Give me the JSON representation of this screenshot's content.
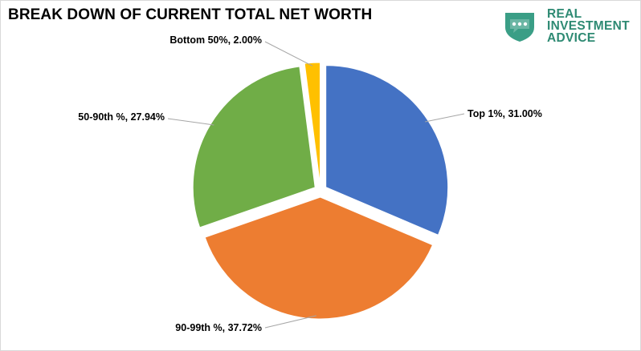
{
  "title": "BREAK DOWN OF CURRENT TOTAL NET WORTH",
  "logo": {
    "lines": [
      "REAL",
      "INVESTMENT",
      "ADVICE"
    ],
    "color": "#2e8a73",
    "icon": "shield-chat-icon"
  },
  "chart_data": {
    "type": "pie",
    "title": "BREAK DOWN OF CURRENT TOTAL NET WORTH",
    "exploded": true,
    "slices": [
      {
        "name": "Top 1%",
        "value": 31.0,
        "label": "Top 1%, 31.00%",
        "color": "#4472c4"
      },
      {
        "name": "90-99th %",
        "value": 37.72,
        "label": "90-99th %, 37.72%",
        "color": "#ed7d31"
      },
      {
        "name": "50-90th %",
        "value": 27.94,
        "label": "50-90th %, 27.94%",
        "color": "#70ad47"
      },
      {
        "name": "Bottom 50%",
        "value": 2.0,
        "label": "Bottom 50%, 2.00%",
        "color": "#ffc000"
      }
    ]
  }
}
